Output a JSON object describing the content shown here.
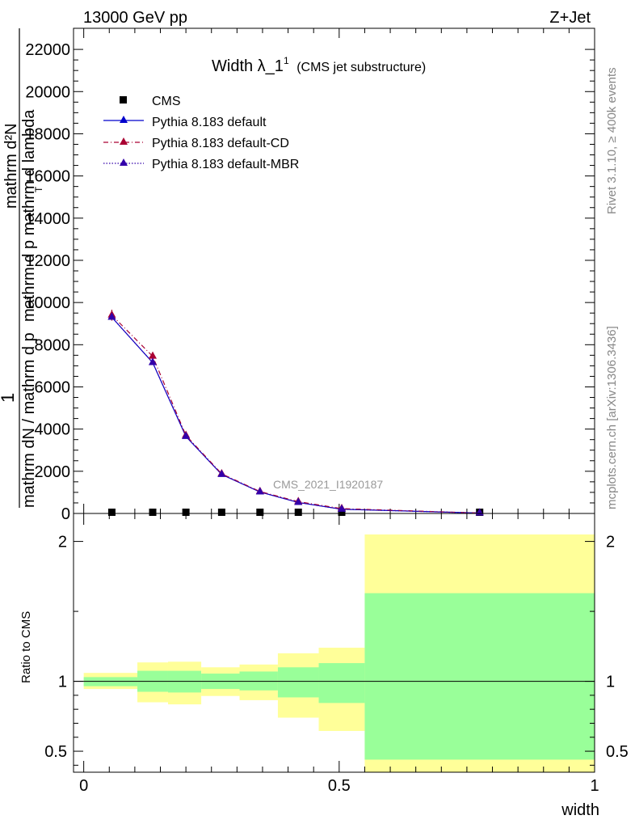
{
  "header": {
    "energy_label": "13000 GeV pp",
    "process_label": "Z+Jet"
  },
  "side_labels": {
    "rivet": "Rivet 3.1.10, ≥ 400k events",
    "mcplots": "mcplots.cern.ch [arXiv:1306.3436]"
  },
  "chart_data": [
    {
      "type": "line",
      "title": "Width λ_1",
      "title_sup": "1",
      "subtitle": "(CMS jet substructure)",
      "watermark": "CMS_2021_I1920187",
      "xlabel": "width",
      "ylabel_lines": [
        "1",
        "mathrm dN / mathrm d p",
        "mathrm d p mathrm d lambda"
      ],
      "ylabel_misc": [
        "mathrm d²N",
        "T"
      ],
      "xlim": [
        -0.02,
        1.0
      ],
      "ylim": [
        0,
        23000
      ],
      "yticks": [
        0,
        2000,
        4000,
        6000,
        8000,
        10000,
        12000,
        14000,
        16000,
        18000,
        20000,
        22000
      ],
      "ytick_labels": [
        "0",
        "2000",
        "4000",
        "6000",
        "8000",
        "10000",
        "12000",
        "14000",
        "16000",
        "18000",
        "20000",
        "22000"
      ],
      "legend": [
        "CMS",
        "Pythia 8.183 default",
        "Pythia 8.183 default-CD",
        "Pythia 8.183 default-MBR"
      ],
      "x": [
        0.055,
        0.135,
        0.2,
        0.27,
        0.345,
        0.42,
        0.505,
        0.775
      ],
      "series": [
        {
          "name": "CMS",
          "values": [
            0,
            0,
            0,
            0,
            0,
            0,
            0,
            0
          ],
          "color": "#000000",
          "marker": "square"
        },
        {
          "name": "Pythia 8.183 default",
          "values": [
            9300,
            7150,
            3650,
            1850,
            1020,
            520,
            200,
            20
          ],
          "color": "#0000cc",
          "marker": "triangle"
        },
        {
          "name": "Pythia 8.183 default-CD",
          "values": [
            9400,
            7450,
            3700,
            1880,
            1040,
            560,
            230,
            20
          ],
          "color": "#aa0033",
          "marker": "triangle",
          "errors": [
            260,
            200,
            0,
            0,
            0,
            0,
            0,
            0
          ]
        },
        {
          "name": "Pythia 8.183 default-MBR",
          "values": [
            9300,
            7150,
            3650,
            1850,
            1020,
            520,
            200,
            20
          ],
          "color": "#3300aa",
          "marker": "triangle"
        }
      ]
    },
    {
      "type": "area",
      "ylabel": "Ratio to CMS",
      "xlabel": "width",
      "xlim": [
        -0.02,
        1.0
      ],
      "ylim": [
        0.35,
        2.2
      ],
      "yticks": [
        0.5,
        1,
        2
      ],
      "ytick_labels": [
        "0.5",
        "1",
        "2"
      ],
      "xticks": [
        0,
        0.5,
        1
      ],
      "xtick_labels": [
        "0",
        "0.5",
        "1"
      ],
      "bins": [
        {
          "lo": 0.0,
          "hi": 0.105,
          "yellow": [
            0.945,
            1.06
          ],
          "green": [
            0.965,
            1.03
          ]
        },
        {
          "lo": 0.105,
          "hi": 0.165,
          "yellow": [
            0.85,
            1.135
          ],
          "green": [
            0.925,
            1.075
          ]
        },
        {
          "lo": 0.165,
          "hi": 0.23,
          "yellow": [
            0.835,
            1.14
          ],
          "green": [
            0.92,
            1.075
          ]
        },
        {
          "lo": 0.23,
          "hi": 0.305,
          "yellow": [
            0.895,
            1.1
          ],
          "green": [
            0.945,
            1.055
          ]
        },
        {
          "lo": 0.305,
          "hi": 0.38,
          "yellow": [
            0.865,
            1.12
          ],
          "green": [
            0.935,
            1.07
          ]
        },
        {
          "lo": 0.38,
          "hi": 0.46,
          "yellow": [
            0.74,
            1.2
          ],
          "green": [
            0.885,
            1.1
          ]
        },
        {
          "lo": 0.46,
          "hi": 0.55,
          "yellow": [
            0.645,
            1.24
          ],
          "green": [
            0.845,
            1.13
          ]
        },
        {
          "lo": 0.55,
          "hi": 1.0,
          "yellow": [
            0.35,
            2.05
          ],
          "green": [
            0.44,
            1.63
          ]
        }
      ]
    }
  ],
  "colors": {
    "yellow_band": "#ffff99",
    "green_band": "#99ff99",
    "axis": "#000000",
    "side_text": "#888888",
    "watermark": "#999999"
  }
}
